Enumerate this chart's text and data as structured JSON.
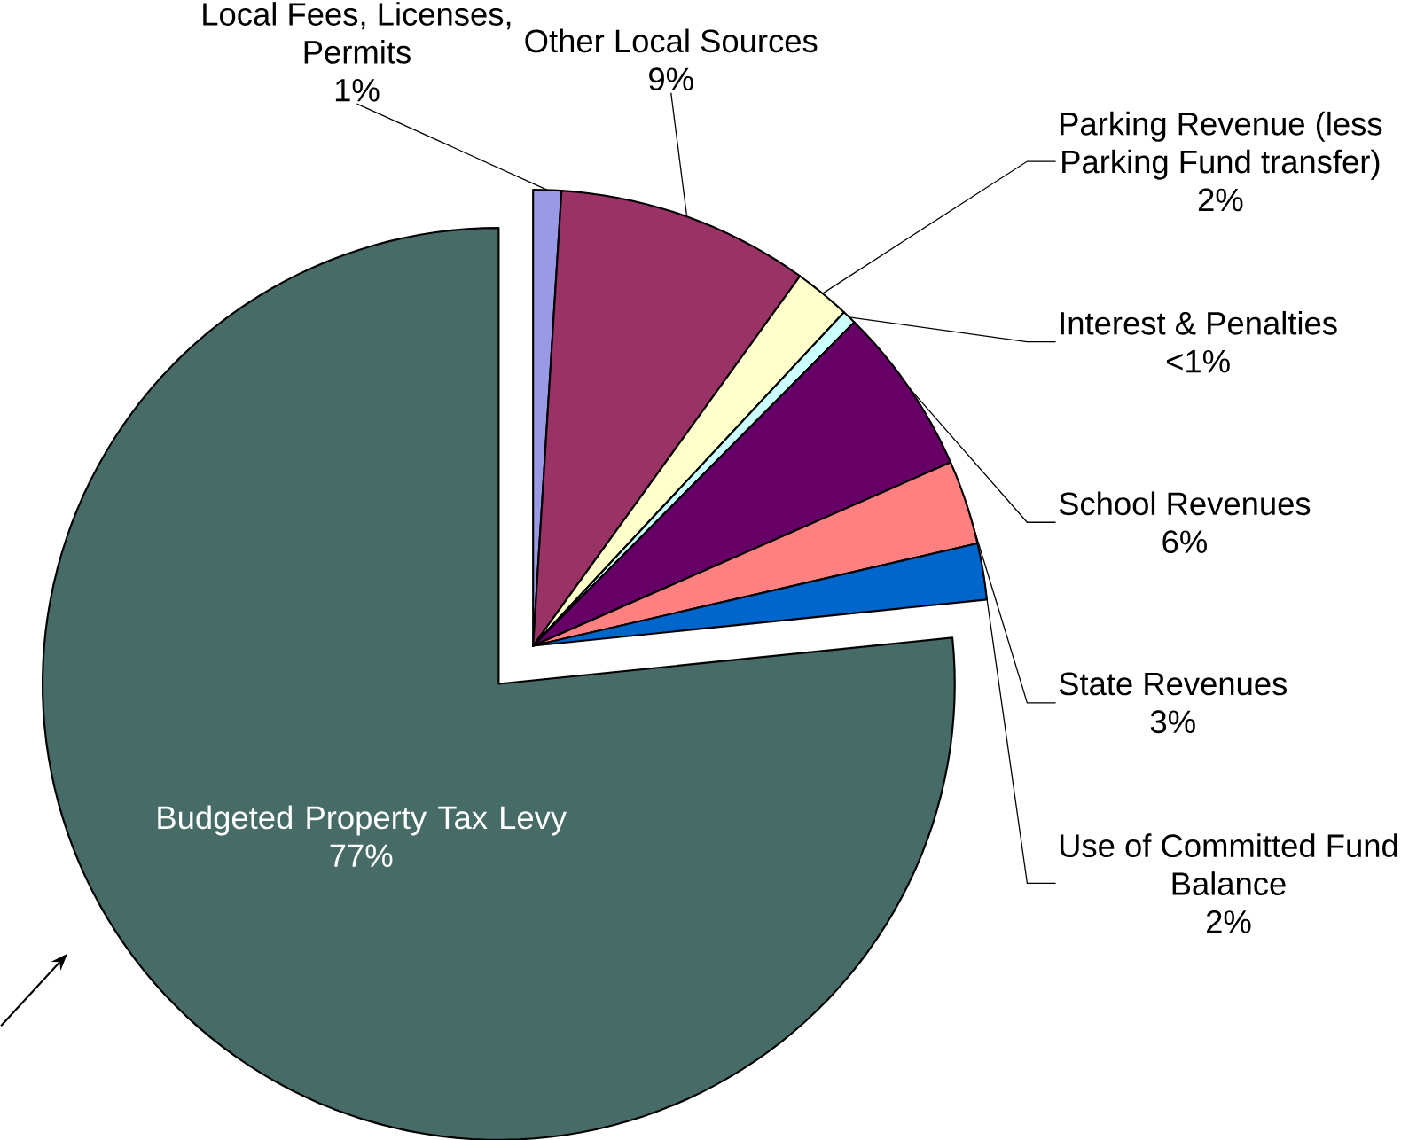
{
  "chart_data": {
    "type": "pie",
    "categories": [
      "Local Fees, Licenses, Permits",
      "Other Local Sources",
      "Parking Revenue (less Parking Fund transfer)",
      "Interest & Penalties",
      "School Revenues",
      "State Revenues",
      "Use of Committed Fund Balance",
      "Budgeted Property Tax Levy"
    ],
    "values": [
      1,
      9,
      2,
      0.5,
      6,
      3,
      2,
      77
    ],
    "value_labels": [
      "1%",
      "9%",
      "2%",
      "<1%",
      "6%",
      "3%",
      "2%",
      "77%"
    ],
    "colors": [
      "#9999e6",
      "#993366",
      "#ffffcc",
      "#ccffff",
      "#660066",
      "#ff8080",
      "#0066cc",
      "#476b66"
    ]
  }
}
